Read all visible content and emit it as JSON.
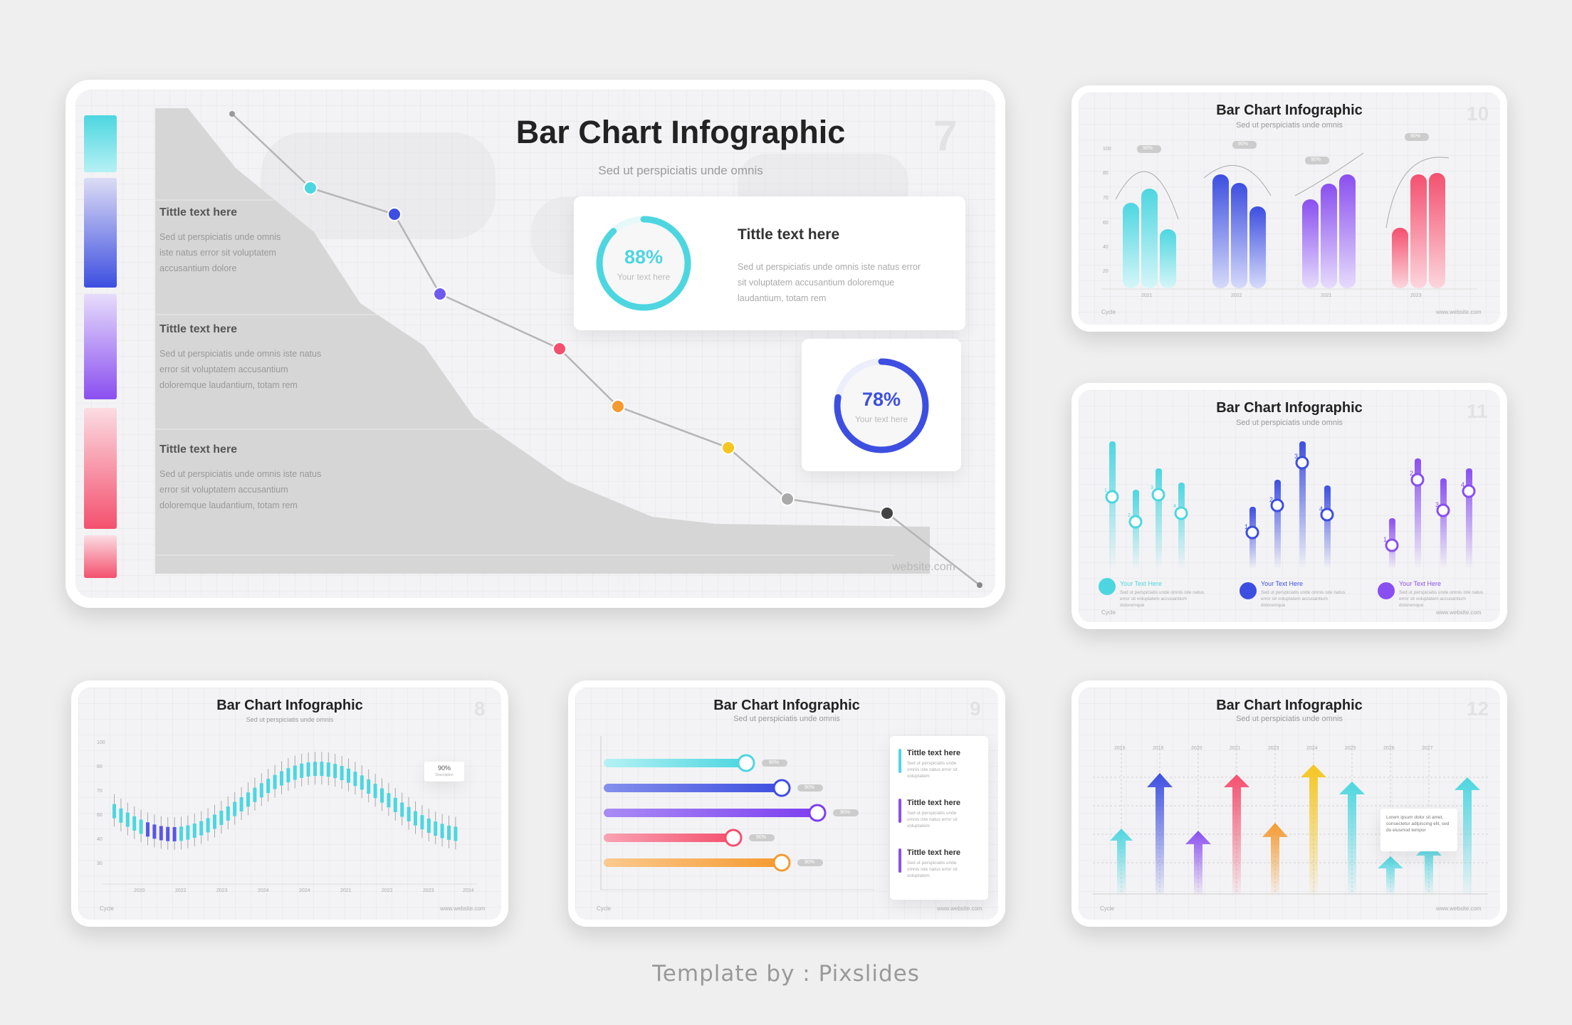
{
  "main": {
    "title": "Bar Chart Infographic",
    "subtitle": "Sed ut perspiciatis unde omnis",
    "number": "7",
    "website": "website.com",
    "blocks": [
      {
        "title": "Tittle text here",
        "body": "Sed ut perspiciatis unde omnis iste natus error  sit voluptatem accusantium dolore"
      },
      {
        "title": "Tittle text here",
        "body": "Sed ut perspiciatis unde omnis iste natus error  sit voluptatem accusantium doloremque laudantium, totam rem"
      },
      {
        "title": "Tittle text here",
        "body": "Sed ut perspiciatis unde omnis iste natus error  sit voluptatem accusantium doloremque laudantium, totam rem"
      }
    ],
    "panel": {
      "title": "Tittle text here",
      "body": "Sed ut perspiciatis unde omnis iste natus error  sit voluptatem accusantium doloremque laudantium, totam rem"
    },
    "gauge1": {
      "value": "88%",
      "caption": "Your text here",
      "fraction": 0.88,
      "color": "#4dd6e0"
    },
    "gauge2": {
      "value": "78%",
      "caption": "Your text here",
      "fraction": 0.78,
      "color": "#3d4fe0"
    }
  },
  "slide10": {
    "title": "Bar Chart Infographic",
    "subtitle": "Sed ut perspiciatis unde omnis",
    "number": "10",
    "footer_left": "Cycle",
    "footer_right": "www.website.com",
    "yticks": [
      "100",
      "80",
      "70",
      "60",
      "40",
      "20"
    ],
    "xticks": [
      "2021",
      "2022",
      "2021",
      "2023"
    ],
    "badges": [
      "90%",
      "90%",
      "90%",
      "90%"
    ]
  },
  "slide11": {
    "title": "Bar Chart Infographic",
    "subtitle": "Sed ut perspiciatis unde omnis",
    "number": "11",
    "footer_left": "Cycle",
    "footer_right": "www.website.com",
    "groups": [
      {
        "label": "Your Text Here",
        "body": "Sed ut perspiciatis unde omnis iste natus error sit voluptatem accusantium doloremque",
        "color": "#4dd6e0"
      },
      {
        "label": "Your Text Here",
        "body": "Sed ut perspiciatis unde omnis iste natus error sit voluptatem accusantium doloremque",
        "color": "#3d4fe0"
      },
      {
        "label": "Your Text Here",
        "body": "Sed ut perspiciatis unde omnis iste natus error sit voluptatem accusantium doloremque",
        "color": "#8a4ff0"
      }
    ],
    "marker_labels": [
      "1",
      "2",
      "3",
      "4",
      "1",
      "2",
      "3",
      "4",
      "1",
      "2",
      "3",
      "4"
    ]
  },
  "slide8": {
    "title": "Bar Chart Infographic",
    "subtitle": "Sed ut perspiciatis unde omnis",
    "number": "8",
    "footer_left": "Cycle",
    "footer_right": "www.website.com",
    "yticks": [
      "100",
      "80",
      "70",
      "60",
      "40",
      "30"
    ],
    "xticks": [
      "2020",
      "2022",
      "2023",
      "2024",
      "2024",
      "2021",
      "2022",
      "2023",
      "2024"
    ],
    "callout": "90%",
    "callout_sub": "Description"
  },
  "slide9": {
    "title": "Bar Chart Infographic",
    "subtitle": "Sed ut perspiciatis unde omnis",
    "number": "9",
    "footer_left": "Cycle",
    "footer_right": "www.website.com",
    "bar_badges": [
      "90%",
      "90%",
      "90%",
      "90%",
      "90%"
    ],
    "items": [
      {
        "title": "Tittle text here",
        "body": "Sed ut perspiciatis unde omnis iste natus error sit voluptatem"
      },
      {
        "title": "Tittle text here",
        "body": "Sed ut perspiciatis unde omnis iste natus error sit voluptatem"
      },
      {
        "title": "Tittle text here",
        "body": "Sed ut perspiciatis unde omnis iste natus error sit voluptatem"
      }
    ]
  },
  "slide12": {
    "title": "Bar Chart Infographic",
    "subtitle": "Sed ut perspiciatis unde omnis",
    "number": "12",
    "footer_left": "Cycle",
    "footer_right": "www.website.com",
    "years": [
      "2015",
      "2016",
      "2020",
      "2021",
      "2023",
      "2024",
      "2025",
      "2026",
      "2027"
    ],
    "note": "Lorem ipsum dolor sit amet, consectetur adipiscing elit, sed do eiusmod tempor"
  },
  "footer": "Template by : Pixslides",
  "colors": {
    "cyan": "#4dd6e0",
    "blue": "#3d4fe0",
    "purple": "#8a4ff0",
    "red": "#f4506e",
    "orange": "#f59a30",
    "yellow": "#f5c520",
    "gray": "#c9c9c9"
  }
}
